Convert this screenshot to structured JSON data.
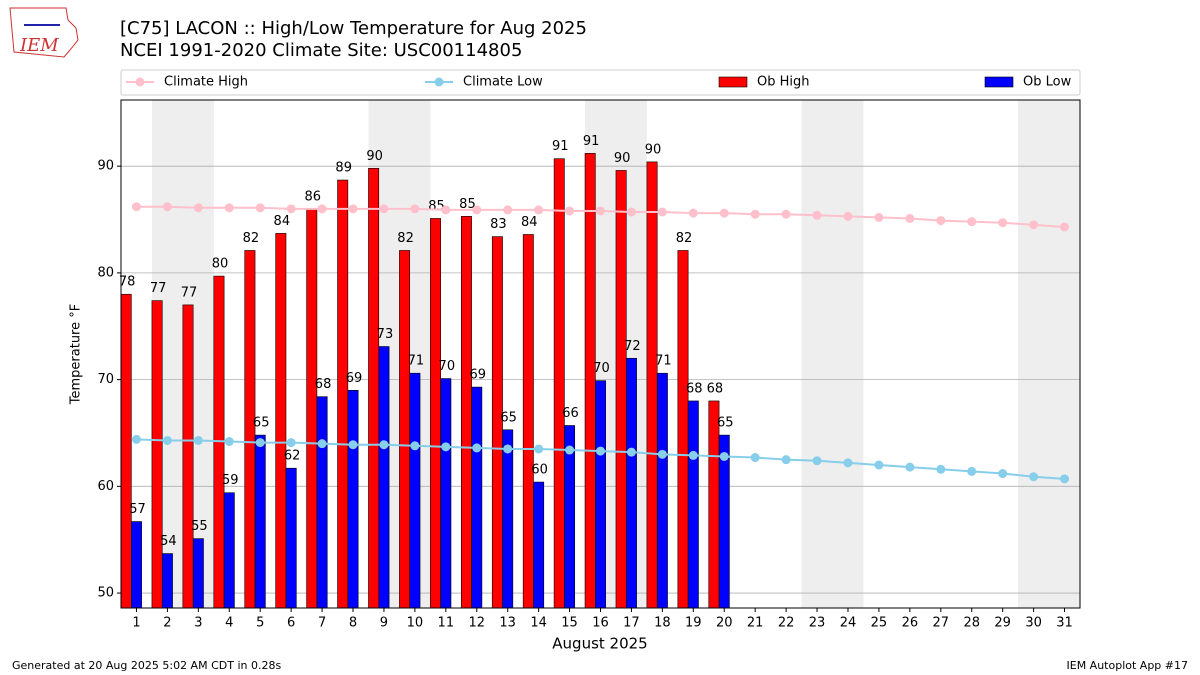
{
  "chart_data": {
    "type": "bar_line",
    "title": "[C75] LACON :: High/Low Temperature for Aug 2025",
    "subtitle": "NCEI 1991-2020 Climate Site: USC00114805",
    "ylabel": "Temperature °F",
    "xlabel": "August 2025",
    "logo": "IEM",
    "footer_left": "Generated at 20 Aug 2025 5:02 AM CDT in 0.28s",
    "footer_right": "IEM Autoplot App #17",
    "x": [
      1,
      2,
      3,
      4,
      5,
      6,
      7,
      8,
      9,
      10,
      11,
      12,
      13,
      14,
      15,
      16,
      17,
      18,
      19,
      20,
      21,
      22,
      23,
      24,
      25,
      26,
      27,
      28,
      29,
      30,
      31
    ],
    "xlim": [
      0.5,
      31.5
    ],
    "xticks": [
      1,
      2,
      3,
      4,
      5,
      6,
      7,
      8,
      9,
      10,
      11,
      12,
      13,
      14,
      15,
      16,
      17,
      18,
      19,
      20,
      21,
      22,
      23,
      24,
      25,
      26,
      27,
      28,
      29,
      30,
      31
    ],
    "ylim": [
      48.6,
      96.2
    ],
    "yticks": [
      50,
      60,
      70,
      80,
      90
    ],
    "grid": true,
    "shaded_x": [
      [
        1.5,
        3.5
      ],
      [
        8.5,
        10.5
      ],
      [
        15.5,
        17.5
      ],
      [
        22.5,
        24.5
      ],
      [
        29.5,
        31.5
      ]
    ],
    "series": [
      {
        "name": "Climate High",
        "kind": "line",
        "color": "#ffc0cb",
        "values": [
          86.2,
          86.2,
          86.1,
          86.1,
          86.1,
          86.0,
          86.0,
          86.0,
          86.0,
          86.0,
          85.9,
          85.9,
          85.9,
          85.9,
          85.8,
          85.8,
          85.7,
          85.7,
          85.6,
          85.6,
          85.5,
          85.5,
          85.4,
          85.3,
          85.2,
          85.1,
          84.9,
          84.8,
          84.7,
          84.5,
          84.3
        ]
      },
      {
        "name": "Climate Low",
        "kind": "line",
        "color": "#87ceeb",
        "values": [
          64.4,
          64.3,
          64.3,
          64.2,
          64.1,
          64.1,
          64.0,
          63.9,
          63.9,
          63.8,
          63.7,
          63.6,
          63.5,
          63.5,
          63.4,
          63.3,
          63.2,
          63.0,
          62.9,
          62.8,
          62.7,
          62.5,
          62.4,
          62.2,
          62.0,
          61.8,
          61.6,
          61.4,
          61.2,
          60.9,
          60.7
        ]
      },
      {
        "name": "Ob High",
        "kind": "bar",
        "color": "#ff0000",
        "values": [
          78.0,
          77.4,
          77.0,
          79.7,
          82.1,
          83.7,
          86.0,
          88.7,
          89.8,
          82.1,
          85.1,
          85.3,
          83.4,
          83.6,
          90.7,
          91.2,
          89.6,
          90.4,
          82.1,
          68.0,
          null,
          null,
          null,
          null,
          null,
          null,
          null,
          null,
          null,
          null,
          null
        ],
        "value_labels": [
          "78",
          "77",
          "77",
          "80",
          "82",
          "84",
          "86",
          "89",
          "90",
          "82",
          "85",
          "85",
          "83",
          "84",
          "91",
          "91",
          "90",
          "90",
          "82",
          "68",
          null,
          null,
          null,
          null,
          null,
          null,
          null,
          null,
          null,
          null,
          null
        ]
      },
      {
        "name": "Ob Low",
        "kind": "bar",
        "color": "#0000ff",
        "values": [
          56.7,
          53.7,
          55.1,
          59.4,
          64.8,
          61.7,
          68.4,
          69.0,
          73.1,
          70.6,
          70.1,
          69.3,
          65.3,
          60.4,
          65.7,
          69.9,
          72.0,
          70.6,
          68.0,
          64.8,
          null,
          null,
          null,
          null,
          null,
          null,
          null,
          null,
          null,
          null,
          null
        ],
        "value_labels": [
          "57",
          "54",
          "55",
          "59",
          "65",
          "62",
          "68",
          "69",
          "73",
          "71",
          "70",
          "69",
          "65",
          "60",
          "66",
          "70",
          "72",
          "71",
          "68",
          "65",
          null,
          null,
          null,
          null,
          null,
          null,
          null,
          null,
          null,
          null,
          null
        ]
      }
    ]
  }
}
